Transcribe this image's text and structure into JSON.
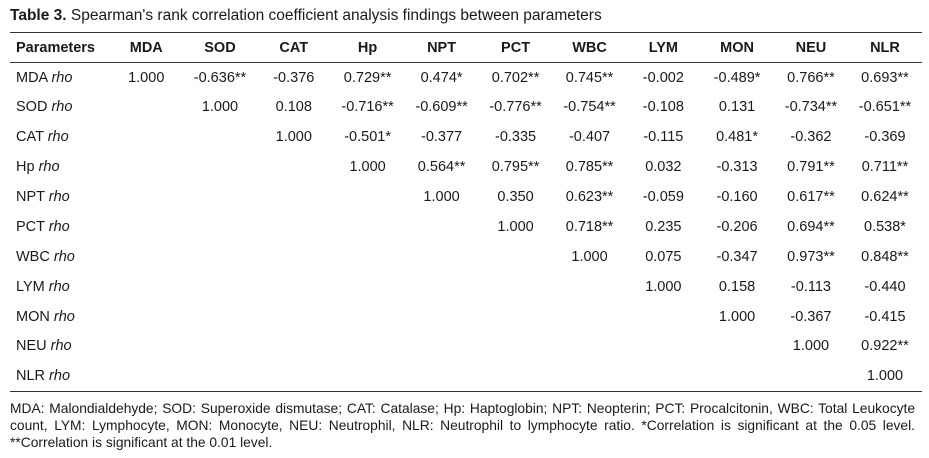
{
  "caption": {
    "label": "Table 3.",
    "text": " Spearman's rank correlation coefficient analysis findings between parameters"
  },
  "table": {
    "header": [
      "Parameters",
      "MDA",
      "SOD",
      "CAT",
      "Hp",
      "NPT",
      "PCT",
      "WBC",
      "LYM",
      "MON",
      "NEU",
      "NLR"
    ],
    "rho_label": "rho",
    "rows": [
      {
        "name": "MDA",
        "cells": [
          "1.000",
          "-0.636**",
          "-0.376",
          "0.729**",
          "0.474*",
          "0.702**",
          "0.745**",
          "-0.002",
          "-0.489*",
          "0.766**",
          "0.693**"
        ]
      },
      {
        "name": "SOD",
        "cells": [
          "",
          "1.000",
          "0.108",
          "-0.716**",
          "-0.609**",
          "-0.776**",
          "-0.754**",
          "-0.108",
          "0.131",
          "-0.734**",
          "-0.651**"
        ]
      },
      {
        "name": "CAT",
        "cells": [
          "",
          "",
          "1.000",
          "-0.501*",
          "-0.377",
          "-0.335",
          "-0.407",
          "-0.115",
          "0.481*",
          "-0.362",
          "-0.369"
        ]
      },
      {
        "name": "Hp",
        "cells": [
          "",
          "",
          "",
          "1.000",
          "0.564**",
          "0.795**",
          "0.785**",
          "0.032",
          "-0.313",
          "0.791**",
          "0.711**"
        ]
      },
      {
        "name": "NPT",
        "cells": [
          "",
          "",
          "",
          "",
          "1.000",
          "0.350",
          "0.623**",
          "-0.059",
          "-0.160",
          "0.617**",
          "0.624**"
        ]
      },
      {
        "name": "PCT",
        "cells": [
          "",
          "",
          "",
          "",
          "",
          "1.000",
          "0.718**",
          "0.235",
          "-0.206",
          "0.694**",
          "0.538*"
        ]
      },
      {
        "name": "WBC",
        "cells": [
          "",
          "",
          "",
          "",
          "",
          "",
          "1.000",
          "0.075",
          "-0.347",
          "0.973**",
          "0.848**"
        ]
      },
      {
        "name": "LYM",
        "cells": [
          "",
          "",
          "",
          "",
          "",
          "",
          "",
          "1.000",
          "0.158",
          "-0.113",
          "-0.440"
        ]
      },
      {
        "name": "MON",
        "cells": [
          "",
          "",
          "",
          "",
          "",
          "",
          "",
          "",
          "1.000",
          "-0.367",
          "-0.415"
        ]
      },
      {
        "name": "NEU",
        "cells": [
          "",
          "",
          "",
          "",
          "",
          "",
          "",
          "",
          "",
          "1.000",
          "0.922**"
        ]
      },
      {
        "name": "NLR",
        "cells": [
          "",
          "",
          "",
          "",
          "",
          "",
          "",
          "",
          "",
          "",
          "1.000"
        ]
      }
    ]
  },
  "footnote": "MDA: Malondialdehyde; SOD:  Superoxide dismutase; CAT: Catalase; Hp: Haptoglobin; NPT: Neopterin; PCT: Procalcitonin, WBC: Total Leukocyte count, LYM: Lymphocyte, MON: Monocyte, NEU: Neutrophil, NLR: Neutrophil to lymphocyte ratio. *Correlation is significant at the 0.05 level.   **Correlation is significant at the 0.01 level."
}
